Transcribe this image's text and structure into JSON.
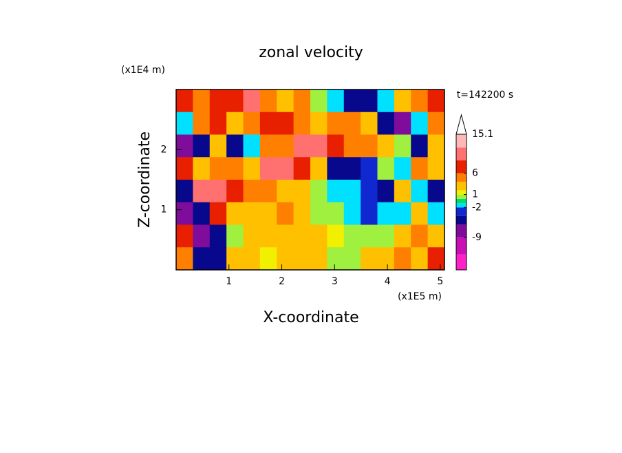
{
  "chart_data": {
    "type": "contour",
    "title": "zonal velocity",
    "xlabel": "X-coordinate",
    "ylabel": "Z-coordinate",
    "x_unit": "(x1E5 m)",
    "y_unit": "(x1E4 m)",
    "time_label": "t=142200 s",
    "xlim": [
      0,
      5.08
    ],
    "ylim": [
      0,
      3
    ],
    "xticks": [
      1,
      2,
      3,
      4,
      5
    ],
    "yticks": [
      1,
      2
    ],
    "z": [
      [
        6,
        4,
        8,
        6,
        9,
        4,
        2,
        4,
        0,
        -2,
        -6,
        -6,
        -2,
        2,
        4,
        6
      ],
      [
        -2,
        4,
        6,
        2,
        4,
        8,
        6,
        4,
        2,
        4,
        4,
        2,
        -6,
        -9,
        -2,
        4
      ],
      [
        -9,
        -6,
        2,
        -6,
        -2,
        4,
        4,
        9,
        9,
        6,
        4,
        4,
        2,
        0,
        -6,
        2
      ],
      [
        6,
        2,
        4,
        4,
        2,
        9,
        9,
        6,
        2,
        -6,
        -6,
        -4,
        0,
        -2,
        4,
        2
      ],
      [
        -6,
        9,
        9,
        6,
        4,
        4,
        2,
        2,
        0,
        -2,
        -2,
        -4,
        -6,
        2,
        -2,
        -6
      ],
      [
        -9,
        -6,
        6,
        2,
        2,
        2,
        4,
        2,
        0,
        0,
        -2,
        -4,
        -2,
        -2,
        2,
        -2
      ],
      [
        6,
        -9,
        -6,
        0,
        2,
        2,
        2,
        2,
        2,
        1,
        0,
        0,
        0,
        2,
        4,
        2
      ],
      [
        4,
        -6,
        -6,
        2,
        2,
        1,
        2,
        2,
        2,
        0,
        0,
        2,
        2,
        4,
        2,
        6
      ]
    ],
    "colorbar": {
      "lim": [
        -16.6,
        15.1
      ],
      "levels": [
        -16.6,
        -13,
        -9,
        -6,
        -4,
        -2,
        -1,
        0,
        1,
        2,
        4,
        6,
        9,
        12,
        15.1
      ],
      "colors": [
        "#ff20c8",
        "#c810b4",
        "#800c9c",
        "#08088c",
        "#1028d0",
        "#00e0ff",
        "#00e060",
        "#a0f040",
        "#f0f000",
        "#ffc000",
        "#ff8000",
        "#e82000",
        "#ff7070",
        "#ffb8b8"
      ],
      "ticks": [
        -9,
        -2,
        1,
        6,
        15.1
      ]
    }
  }
}
